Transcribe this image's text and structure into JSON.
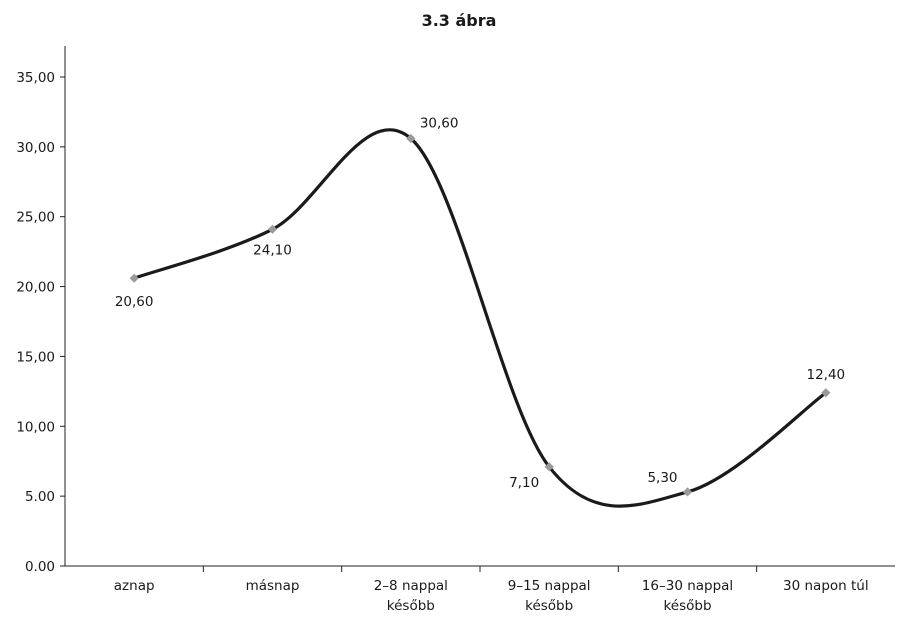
{
  "chart_data": {
    "type": "line",
    "title": "3.3 ábra",
    "categories": [
      "aznap",
      "másnap",
      "2–8 nappal később",
      "9–15 nappal később",
      "16–30 nappal később",
      "30 napon túl"
    ],
    "series": [
      {
        "values": [
          20.6,
          24.1,
          30.6,
          7.1,
          5.3,
          12.4
        ],
        "data_labels": [
          "20,60",
          "24,10",
          "30,60",
          "7,10",
          "5,30",
          "12,40"
        ]
      }
    ],
    "ylim": [
      0,
      35
    ],
    "y_ticks": [
      0,
      5,
      10,
      15,
      20,
      25,
      30,
      35
    ],
    "y_tick_labels": [
      "0.00",
      "5.00",
      "10,00",
      "15,00",
      "20,00",
      "25,00",
      "30,00",
      "35,00"
    ],
    "smooth": true,
    "grid": false,
    "legend": "none",
    "colors": {
      "line": "#1a1a1a",
      "marker": "#9a9a9a",
      "axis": "#222222"
    }
  }
}
